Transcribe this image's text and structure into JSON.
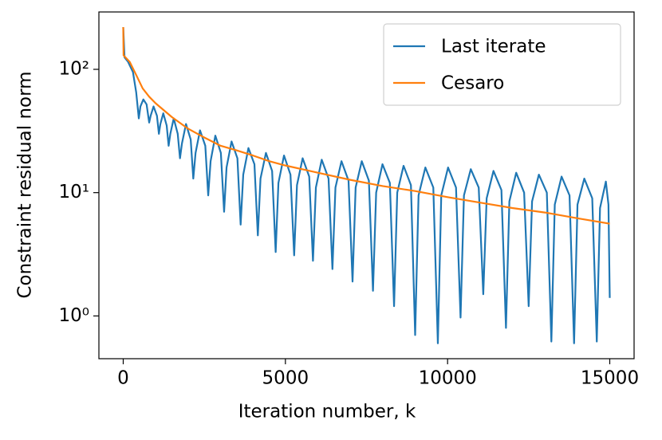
{
  "chart_data": {
    "type": "line",
    "xlabel": "Iteration number, k",
    "ylabel": "Constraint residual norm",
    "yscale": "log",
    "xlim": [
      -750,
      15750
    ],
    "ylim": [
      0.45,
      292
    ],
    "xticks": [
      0,
      5000,
      10000,
      15000
    ],
    "yticks": [
      {
        "value": 1,
        "label": "10⁰"
      },
      {
        "value": 10,
        "label": "10¹"
      },
      {
        "value": 100,
        "label": "10²"
      }
    ],
    "legend": "upper right",
    "series": [
      {
        "name": "Last iterate",
        "color": "#1f77b4",
        "x": [
          0,
          40,
          150,
          300,
          400,
          480,
          530,
          620,
          720,
          800,
          845,
          935,
          1040,
          1100,
          1145,
          1235,
          1340,
          1400,
          1452,
          1557,
          1680,
          1750,
          1810,
          1935,
          2080,
          2160,
          2230,
          2367,
          2530,
          2620,
          2694,
          2840,
          3010,
          3110,
          3186,
          3340,
          3520,
          3620,
          3700,
          3860,
          4045,
          4150,
          4232,
          4400,
          4590,
          4700,
          4785,
          4957,
          5156,
          5270,
          5357,
          5531,
          5734,
          5850,
          5940,
          6120,
          6330,
          6450,
          6543,
          6729,
          6946,
          7070,
          7165,
          7354,
          7574,
          7700,
          7798,
          7993,
          8220,
          8350,
          8448,
          8643,
          8870,
          9000,
          9105,
          9315,
          9560,
          9700,
          9805,
          10015,
          10260,
          10400,
          10505,
          10715,
          10960,
          11100,
          11205,
          11415,
          11660,
          11800,
          11905,
          12115,
          12360,
          12500,
          12605,
          12815,
          13060,
          13200,
          13305,
          13515,
          13760,
          13900,
          14005,
          14215,
          14460,
          14600,
          14700,
          14880,
          14960,
          15000
        ],
        "values": [
          220,
          125,
          115,
          95,
          65,
          40,
          50,
          57,
          52,
          37,
          42,
          50,
          42,
          30,
          36,
          44,
          35,
          24,
          30,
          40,
          30,
          19,
          25,
          36,
          27,
          13,
          21,
          32,
          24,
          9.5,
          18,
          29,
          21,
          7,
          16,
          26,
          19,
          5.5,
          14,
          23,
          17,
          4.5,
          13,
          21,
          15,
          3.3,
          12,
          20,
          14,
          3.1,
          11.5,
          19,
          13.5,
          2.8,
          11,
          18.5,
          13,
          2.4,
          11,
          18,
          12.5,
          1.9,
          11,
          18,
          12.5,
          1.6,
          10,
          17,
          12,
          1.2,
          10,
          16.5,
          11.5,
          0.7,
          9.5,
          16,
          11,
          0.6,
          9.5,
          16,
          11,
          0.97,
          9.5,
          15.5,
          11,
          1.5,
          9,
          15,
          10.5,
          0.8,
          8.5,
          14.5,
          10,
          1.2,
          8.5,
          14,
          10,
          0.62,
          8,
          13.5,
          9.5,
          0.6,
          8,
          13,
          9,
          0.62,
          7.5,
          12.3,
          8,
          1.4
        ]
      },
      {
        "name": "Cesaro",
        "color": "#ff7f0e",
        "x": [
          0,
          10,
          200,
          400,
          600,
          800,
          1000,
          1500,
          2000,
          2500,
          3000,
          3500,
          4000,
          4500,
          5000,
          6000,
          7000,
          8000,
          9000,
          10000,
          11000,
          12000,
          13000,
          14000,
          15000
        ],
        "values": [
          220,
          130,
          115,
          90,
          70,
          60,
          53,
          41,
          33,
          28,
          24,
          22,
          20,
          18,
          16.6,
          14.5,
          12.7,
          11.3,
          10.3,
          9.2,
          8.3,
          7.5,
          6.9,
          6.2,
          5.6
        ]
      }
    ]
  }
}
